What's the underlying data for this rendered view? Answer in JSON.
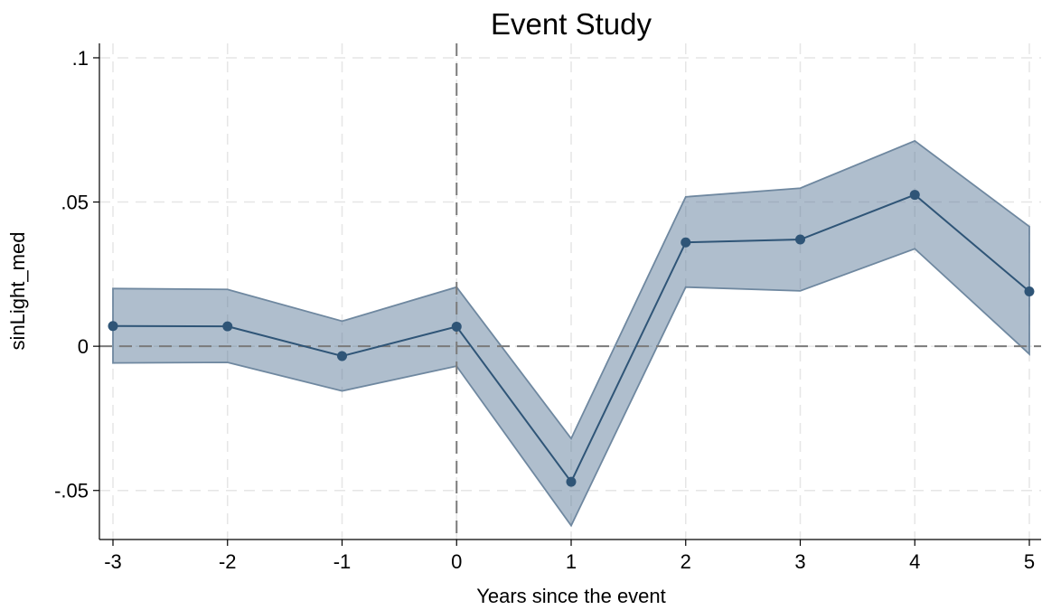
{
  "chart_data": {
    "type": "line",
    "title": "Event Study",
    "xlabel": "Years since the event",
    "ylabel": "sinLight_med",
    "x": [
      -3,
      -2,
      -1,
      0,
      1,
      2,
      3,
      4,
      5
    ],
    "xticks": [
      "-3",
      "-2",
      "-1",
      "0",
      "1",
      "2",
      "3",
      "4",
      "5"
    ],
    "yticks": [
      {
        "value": -0.05,
        "label": "-.05"
      },
      {
        "value": 0,
        "label": "0"
      },
      {
        "value": 0.05,
        "label": ".05"
      },
      {
        "value": 0.1,
        "label": ".1"
      }
    ],
    "xlim": [
      -3,
      5
    ],
    "ylim": [
      -0.067,
      0.105
    ],
    "series": [
      {
        "values": [
          0.007,
          0.0069,
          -0.0034,
          0.0068,
          -0.047,
          0.036,
          0.037,
          0.0525,
          0.019
        ],
        "ci_upper": [
          0.02,
          0.0197,
          0.0087,
          0.0205,
          -0.032,
          0.0518,
          0.0548,
          0.0712,
          0.0415
        ],
        "ci_lower": [
          -0.0058,
          -0.0056,
          -0.0155,
          -0.0069,
          -0.0622,
          0.0205,
          0.0192,
          0.0338,
          -0.0027
        ]
      }
    ],
    "reference_lines": {
      "x": 0,
      "y": 0
    },
    "grid": true,
    "colors": {
      "line": "#2f5577",
      "band_fill": "#4e6f90",
      "band_edge": "#6f88a0"
    }
  }
}
